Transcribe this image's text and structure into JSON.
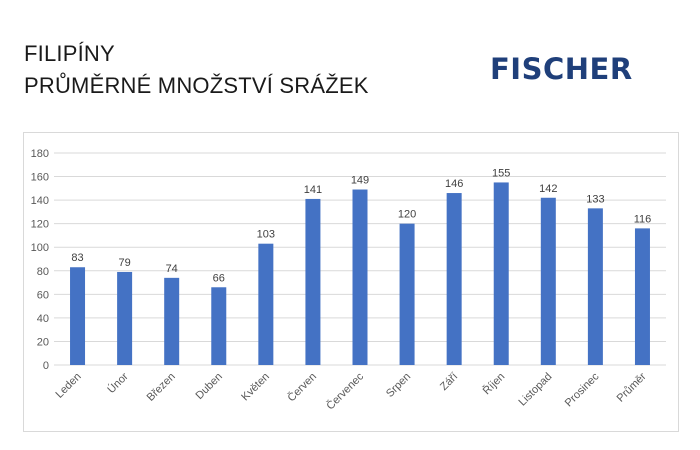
{
  "header": {
    "title_line1": "FILIPÍNY",
    "title_line2": "PRŮMĚRNÉ MNOŽSTVÍ SRÁŽEK",
    "logo_text": "FISCHER"
  },
  "chart_data": {
    "type": "bar",
    "categories": [
      "Leden",
      "Únor",
      "Březen",
      "Duben",
      "Květen",
      "Červen",
      "Červenec",
      "Srpen",
      "Září",
      "Říjen",
      "Listopad",
      "Prosinec",
      "Průměr"
    ],
    "values": [
      83,
      79,
      74,
      66,
      103,
      141,
      149,
      120,
      146,
      155,
      142,
      133,
      116
    ],
    "ylim": [
      0,
      180
    ],
    "yticks": [
      0,
      20,
      40,
      60,
      80,
      100,
      120,
      140,
      160,
      180
    ],
    "data_labels": true,
    "grid": true,
    "legend": "none",
    "bar_color": "#4472c4"
  }
}
